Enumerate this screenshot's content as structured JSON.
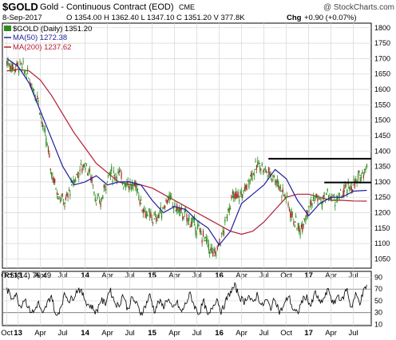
{
  "header": {
    "ticker": "$GOLD",
    "name": "Gold - Continuous Contract (EOD)",
    "exchange": "CME",
    "watermark": "@ StockCharts.com",
    "date": "8-Sep-2017",
    "quote": "O 1354.00  H 1362.40  L 1347.10  C 1351.20  V 377.8K",
    "chg_label": "Chg",
    "chg_value": "+0.90 (+0.07%)"
  },
  "colors": {
    "price": "#2e8b1e",
    "ma50": "#1f1f9f",
    "ma200": "#b51a33",
    "rsi": "#000000",
    "grid": "#d6d6d6",
    "background": "#ffffff"
  },
  "chart_data": [
    {
      "type": "line",
      "legend": [
        {
          "label": "$GOLD (Daily) 1351.20",
          "color": "#2e8b1e"
        },
        {
          "label": "MA(50) 1272.38",
          "color": "#1f1f9f"
        },
        {
          "label": "MA(200) 1237.62",
          "color": "#b51a33"
        }
      ],
      "legend_position": "top-left",
      "ylim": [
        1020,
        1815
      ],
      "y_ticks": [
        1050,
        1100,
        1150,
        1200,
        1250,
        1300,
        1350,
        1400,
        1450,
        1500,
        1550,
        1600,
        1650,
        1700,
        1750,
        1800
      ],
      "x_ticks": [
        "Oct",
        "13",
        "Apr",
        "Jul",
        "14",
        "Apr",
        "Jul",
        "15",
        "Apr",
        "Jul",
        "16",
        "Apr",
        "Jul",
        "Oct",
        "17",
        "Apr",
        "Jul"
      ],
      "x_tick_t": [
        0,
        0.5,
        1.5,
        2.5,
        3.5,
        4.5,
        5.5,
        6.5,
        7.5,
        8.5,
        9.5,
        10.5,
        11.5,
        12.5,
        13.5,
        14.5,
        15.5
      ],
      "x_range": [
        -0.2,
        16.3
      ],
      "grid": true,
      "series": [
        {
          "name": "$GOLD (Daily)",
          "style": "candles",
          "t": [
            0.0,
            0.3,
            0.6,
            0.9,
            1.2,
            1.4,
            1.6,
            1.8,
            2.0,
            2.3,
            2.6,
            2.9,
            3.2,
            3.5,
            3.8,
            4.0,
            4.2,
            4.4,
            4.6,
            4.8,
            5.0,
            5.2,
            5.4,
            5.6,
            5.8,
            6.0,
            6.3,
            6.6,
            6.9,
            7.2,
            7.5,
            7.8,
            8.1,
            8.4,
            8.7,
            8.9,
            9.1,
            9.3,
            9.5,
            9.7,
            9.9,
            10.1,
            10.3,
            10.5,
            10.7,
            10.9,
            11.1,
            11.3,
            11.5,
            11.7,
            11.9,
            12.1,
            12.3,
            12.5,
            12.7,
            12.9,
            13.1,
            13.3,
            13.5,
            13.7,
            13.9,
            14.1,
            14.3,
            14.5,
            14.7,
            14.9,
            15.1,
            15.3,
            15.5,
            15.7,
            15.8,
            15.9,
            16.0,
            16.1
          ],
          "values": [
            1690,
            1670,
            1680,
            1650,
            1600,
            1570,
            1480,
            1420,
            1330,
            1260,
            1230,
            1290,
            1330,
            1360,
            1310,
            1240,
            1230,
            1290,
            1330,
            1320,
            1330,
            1300,
            1300,
            1280,
            1290,
            1230,
            1190,
            1180,
            1200,
            1250,
            1220,
            1200,
            1180,
            1160,
            1130,
            1110,
            1080,
            1060,
            1100,
            1140,
            1210,
            1250,
            1250,
            1260,
            1280,
            1320,
            1340,
            1360,
            1340,
            1330,
            1320,
            1300,
            1270,
            1250,
            1200,
            1170,
            1140,
            1180,
            1220,
            1240,
            1250,
            1230,
            1260,
            1250,
            1240,
            1250,
            1270,
            1280,
            1290,
            1300,
            1320,
            1330,
            1340,
            1351.2
          ]
        },
        {
          "name": "MA(50)",
          "style": "line",
          "t": [
            0.0,
            0.5,
            1.0,
            1.5,
            2.0,
            2.5,
            3.0,
            3.5,
            4.0,
            4.5,
            5.0,
            5.5,
            6.0,
            6.5,
            7.0,
            7.5,
            8.0,
            8.5,
            9.0,
            9.5,
            10.0,
            10.5,
            11.0,
            11.5,
            12.0,
            12.5,
            13.0,
            13.5,
            14.0,
            14.5,
            15.0,
            15.5,
            16.1
          ],
          "values": [
            1700,
            1675,
            1620,
            1530,
            1440,
            1350,
            1290,
            1300,
            1320,
            1290,
            1300,
            1300,
            1290,
            1240,
            1200,
            1220,
            1210,
            1175,
            1150,
            1095,
            1140,
            1230,
            1260,
            1290,
            1340,
            1310,
            1240,
            1190,
            1230,
            1250,
            1250,
            1270,
            1272.38
          ]
        },
        {
          "name": "MA(200)",
          "style": "line",
          "t": [
            0.0,
            0.5,
            1.0,
            1.5,
            2.0,
            2.5,
            3.0,
            3.5,
            4.0,
            4.5,
            5.0,
            5.5,
            6.0,
            6.5,
            7.0,
            7.5,
            8.0,
            8.5,
            9.0,
            9.5,
            10.0,
            10.5,
            11.0,
            11.5,
            12.0,
            12.5,
            13.0,
            13.5,
            14.0,
            14.5,
            15.0,
            15.5,
            16.1
          ],
          "values": [
            1660,
            1665,
            1660,
            1630,
            1580,
            1520,
            1460,
            1410,
            1360,
            1330,
            1300,
            1290,
            1290,
            1280,
            1260,
            1240,
            1220,
            1200,
            1180,
            1160,
            1140,
            1130,
            1140,
            1170,
            1210,
            1250,
            1260,
            1260,
            1250,
            1240,
            1240,
            1238,
            1237.62
          ]
        }
      ],
      "annotations": [
        {
          "type": "hline",
          "y": 1375,
          "t_from": 11.7,
          "t_to": 16.3
        },
        {
          "type": "hline",
          "y": 1298,
          "t_from": 14.2,
          "t_to": 16.3
        }
      ]
    },
    {
      "type": "line",
      "legend": [
        {
          "label": "RSI(14) 76.49",
          "color": "#000000"
        }
      ],
      "ylim": [
        8,
        100
      ],
      "y_ticks": [
        10,
        30,
        50,
        70,
        90
      ],
      "x_ticks": [
        "Oct",
        "13",
        "Apr",
        "Jul",
        "14",
        "Apr",
        "Jul",
        "15",
        "Apr",
        "Jul",
        "16",
        "Apr",
        "Jul",
        "Oct",
        "17",
        "Apr",
        "Jul"
      ],
      "series": [
        {
          "name": "RSI(14)",
          "t": [
            0.0,
            0.2,
            0.4,
            0.6,
            0.8,
            1.0,
            1.2,
            1.4,
            1.6,
            1.8,
            2.0,
            2.2,
            2.4,
            2.6,
            2.8,
            3.0,
            3.2,
            3.4,
            3.6,
            3.8,
            4.0,
            4.2,
            4.4,
            4.6,
            4.8,
            5.0,
            5.2,
            5.4,
            5.6,
            5.8,
            6.0,
            6.2,
            6.4,
            6.6,
            6.8,
            7.0,
            7.2,
            7.4,
            7.6,
            7.8,
            8.0,
            8.2,
            8.4,
            8.6,
            8.8,
            9.0,
            9.2,
            9.4,
            9.6,
            9.8,
            10.0,
            10.2,
            10.4,
            10.6,
            10.8,
            11.0,
            11.2,
            11.4,
            11.6,
            11.8,
            12.0,
            12.2,
            12.4,
            12.6,
            12.8,
            13.0,
            13.2,
            13.4,
            13.6,
            13.8,
            14.0,
            14.2,
            14.4,
            14.6,
            14.8,
            15.0,
            15.2,
            15.4,
            15.6,
            15.8,
            16.0,
            16.1
          ],
          "values": [
            70,
            55,
            62,
            40,
            55,
            35,
            30,
            48,
            25,
            45,
            60,
            20,
            40,
            62,
            50,
            58,
            72,
            60,
            45,
            40,
            30,
            52,
            45,
            70,
            50,
            40,
            62,
            35,
            55,
            45,
            28,
            42,
            60,
            32,
            50,
            40,
            55,
            35,
            48,
            30,
            45,
            62,
            40,
            28,
            50,
            22,
            40,
            55,
            30,
            50,
            65,
            75,
            58,
            48,
            60,
            45,
            62,
            40,
            52,
            38,
            55,
            30,
            42,
            60,
            35,
            28,
            50,
            58,
            40,
            65,
            45,
            55,
            70,
            42,
            60,
            50,
            72,
            38,
            60,
            48,
            70,
            76.49
          ]
        }
      ],
      "ref_lines": [
        30,
        70
      ]
    }
  ]
}
